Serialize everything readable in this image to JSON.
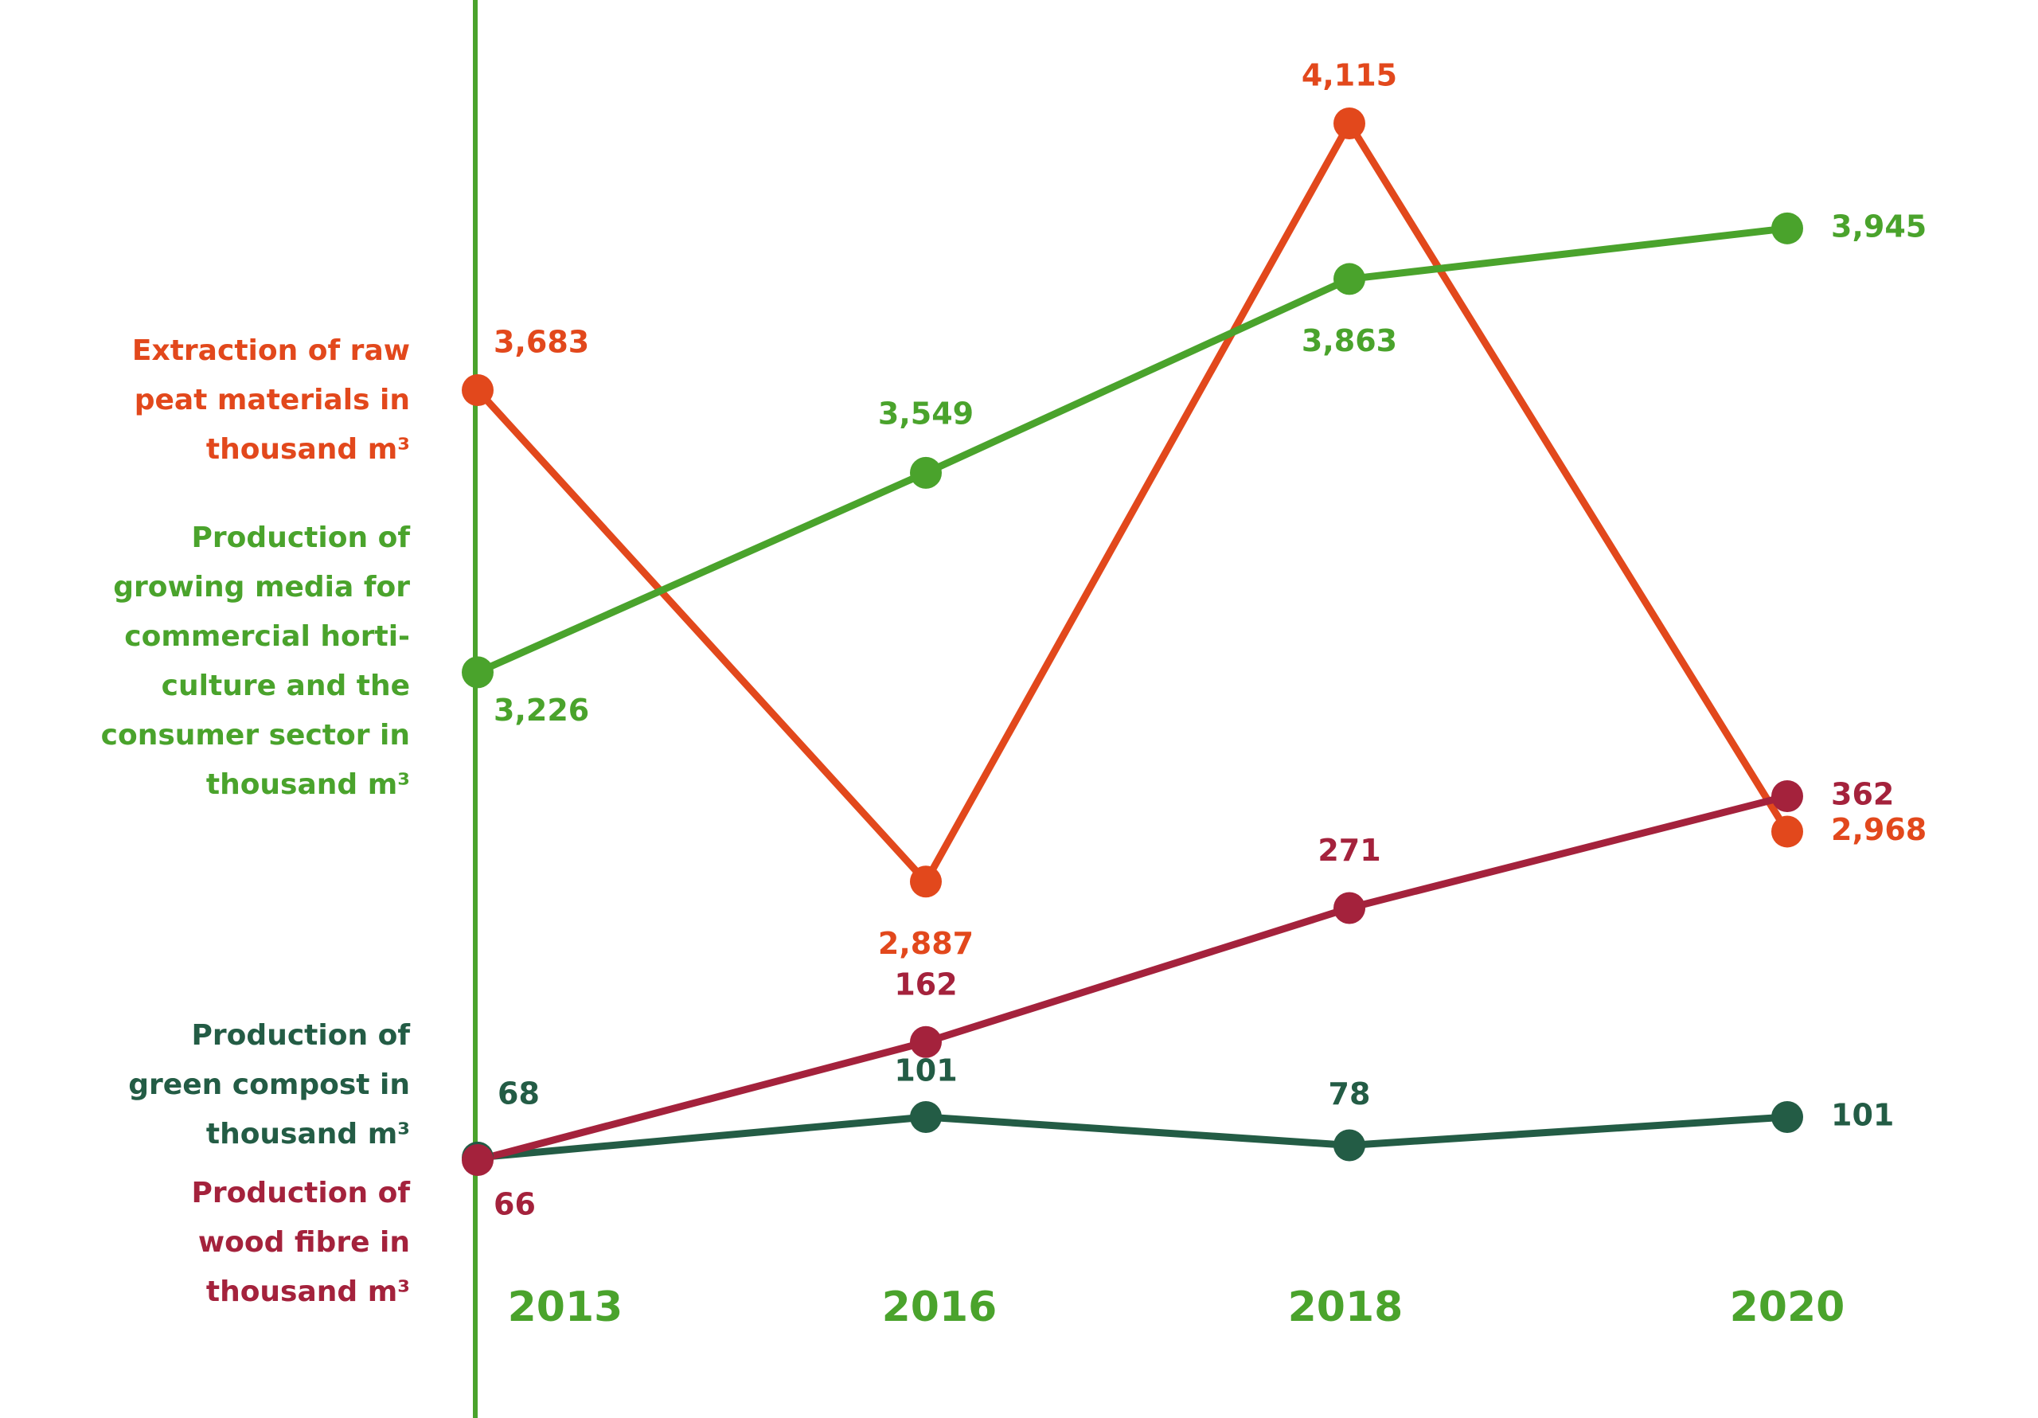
{
  "chart_data": {
    "type": "line",
    "x": [
      "2013",
      "2016",
      "2018",
      "2020"
    ],
    "series": [
      {
        "name": "Extraction of raw peat materials in thousand m³",
        "legend_lines": [
          "Extraction of raw",
          "peat materials in",
          "thousand m³"
        ],
        "color": "#e2481c",
        "values": [
          3683,
          2887,
          4115,
          2968
        ],
        "labels": [
          "3,683",
          "2,887",
          "4,115",
          "2,968"
        ]
      },
      {
        "name": "Production of growing media for commercial horticulture and the consumer sector in thousand m³",
        "legend_lines": [
          "Production of",
          "growing media for",
          "commercial horti-",
          "culture and the",
          "consumer sector in",
          "thousand m³"
        ],
        "color": "#4aa32c",
        "values": [
          3226,
          3549,
          3863,
          3945
        ],
        "labels": [
          "3,226",
          "3,549",
          "3,863",
          "3,945"
        ]
      },
      {
        "name": "Production of green compost in thousand m³",
        "legend_lines": [
          "Production of",
          "green compost in",
          "thousand m³"
        ],
        "color": "#235c45",
        "values": [
          68,
          101,
          78,
          101
        ],
        "labels": [
          "68",
          "101",
          "78",
          "101"
        ]
      },
      {
        "name": "Production of wood fibre in thousand m³",
        "legend_lines": [
          "Production of",
          "wood fibre in",
          "thousand m³"
        ],
        "color": "#a4223c",
        "values": [
          66,
          162,
          271,
          362
        ],
        "labels": [
          "66",
          "162",
          "271",
          "362"
        ]
      }
    ],
    "axis_color": "#4aa32c",
    "grid": false,
    "legend": "left"
  }
}
